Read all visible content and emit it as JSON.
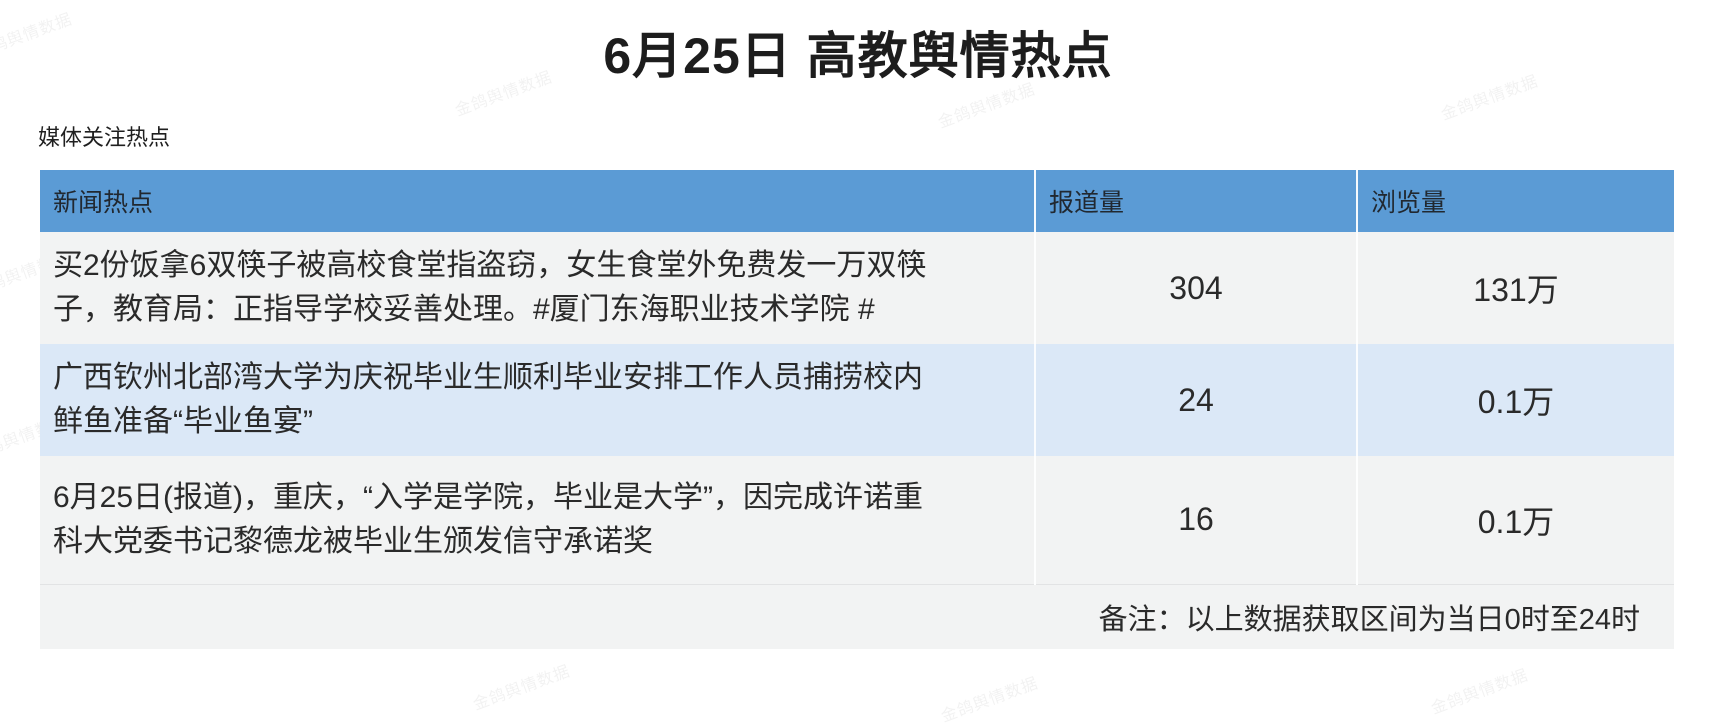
{
  "page": {
    "title": "6月25日 高教舆情热点",
    "section_label": "媒体关注热点",
    "watermark_text": "金鸽舆情数据"
  },
  "colors": {
    "header_bg": "#5b9bd5",
    "row_bg": "#f2f3f3",
    "row_alt_bg": "#dbe8f7"
  },
  "table": {
    "headers": [
      "新闻热点",
      "报道量",
      "浏览量"
    ],
    "rows": [
      {
        "topic": "买2份饭拿6双筷子被高校食堂指盗窃，女生食堂外免费发一万双筷子，教育局：正指导学校妥善处理。#厦门东海职业技术学院 #",
        "reports": "304",
        "views": "131万"
      },
      {
        "topic": "广西钦州北部湾大学为庆祝毕业生顺利毕业安排工作人员捕捞校内鲜鱼准备“毕业鱼宴”",
        "reports": "24",
        "views": "0.1万"
      },
      {
        "topic": "6月25日(报道)，重庆，“入学是学院，毕业是大学”，因完成许诺重科大党委书记黎德龙被毕业生颁发信守承诺奖",
        "reports": "16",
        "views": "0.1万"
      }
    ],
    "footer_note": "备注：以上数据获取区间为当日0时至24时"
  }
}
